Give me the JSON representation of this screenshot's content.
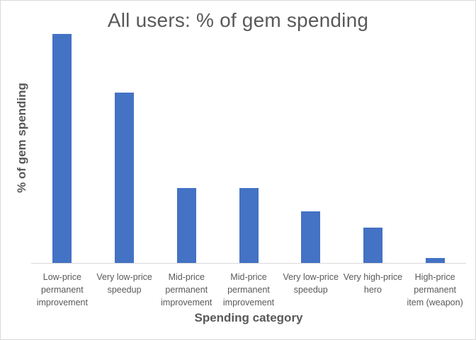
{
  "chart_data": {
    "type": "bar",
    "title": "All users: % of gem spending",
    "xlabel": "Spending category",
    "ylabel": "% of gem spending",
    "categories": [
      "Low-price permanent improvement",
      "Very low-price speedup",
      "Mid-price permanent improvement",
      "Mid-price permanent improvement",
      "Very low-price speedup",
      "Very high-price hero",
      "High-price permanent item (weapon)"
    ],
    "category_lines": [
      [
        "Low-price",
        "permanent",
        "improvement"
      ],
      [
        "Very low-price",
        "speedup"
      ],
      [
        "Mid-price",
        "permanent",
        "improvement"
      ],
      [
        "Mid-price",
        "permanent",
        "improvement"
      ],
      [
        "Very low-price",
        "speedup"
      ],
      [
        "Very high-price",
        "hero"
      ],
      [
        "High-price",
        "permanent",
        "item (weapon)"
      ]
    ],
    "values": [
      35.5,
      26.5,
      11.7,
      11.7,
      8.1,
      5.6,
      0.9
    ],
    "ylim": [
      0,
      37.5
    ],
    "grid": false,
    "y_tick_labels_shown": false,
    "legend": null,
    "bar_color": "#4472c4"
  }
}
